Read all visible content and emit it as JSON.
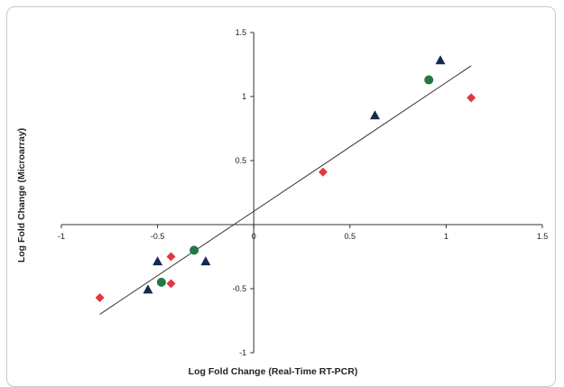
{
  "chart_data": {
    "type": "scatter",
    "xlabel": "Log Fold Change (Real-Time RT-PCR)",
    "ylabel": "Log Fold Change (Microarray)",
    "xlim": [
      -1,
      1.5
    ],
    "ylim": [
      -1,
      1.5
    ],
    "xticks": [
      -1,
      -0.5,
      0,
      0.5,
      1,
      1.5
    ],
    "yticks": [
      -1,
      -0.5,
      0,
      0.5,
      1,
      1.5
    ],
    "grid": false,
    "legend": "none",
    "series": [
      {
        "marker": "diamond",
        "color": "#e0383e",
        "points": [
          {
            "x": -0.8,
            "y": -0.57
          },
          {
            "x": -0.43,
            "y": -0.25
          },
          {
            "x": -0.43,
            "y": -0.46
          },
          {
            "x": 0.36,
            "y": 0.41
          },
          {
            "x": 1.13,
            "y": 0.99
          }
        ]
      },
      {
        "marker": "triangle",
        "color": "#14294f",
        "points": [
          {
            "x": -0.55,
            "y": -0.51
          },
          {
            "x": -0.5,
            "y": -0.29
          },
          {
            "x": -0.25,
            "y": -0.29
          },
          {
            "x": 0.63,
            "y": 0.85
          },
          {
            "x": 0.97,
            "y": 1.28
          }
        ]
      },
      {
        "marker": "circle",
        "color": "#1f7a45",
        "points": [
          {
            "x": -0.48,
            "y": -0.45
          },
          {
            "x": -0.31,
            "y": -0.2
          },
          {
            "x": 0.91,
            "y": 1.13
          }
        ]
      }
    ],
    "trendline": {
      "x": [
        -0.8,
        1.13
      ],
      "y": [
        -0.7,
        1.24
      ],
      "color": "#333333"
    }
  }
}
